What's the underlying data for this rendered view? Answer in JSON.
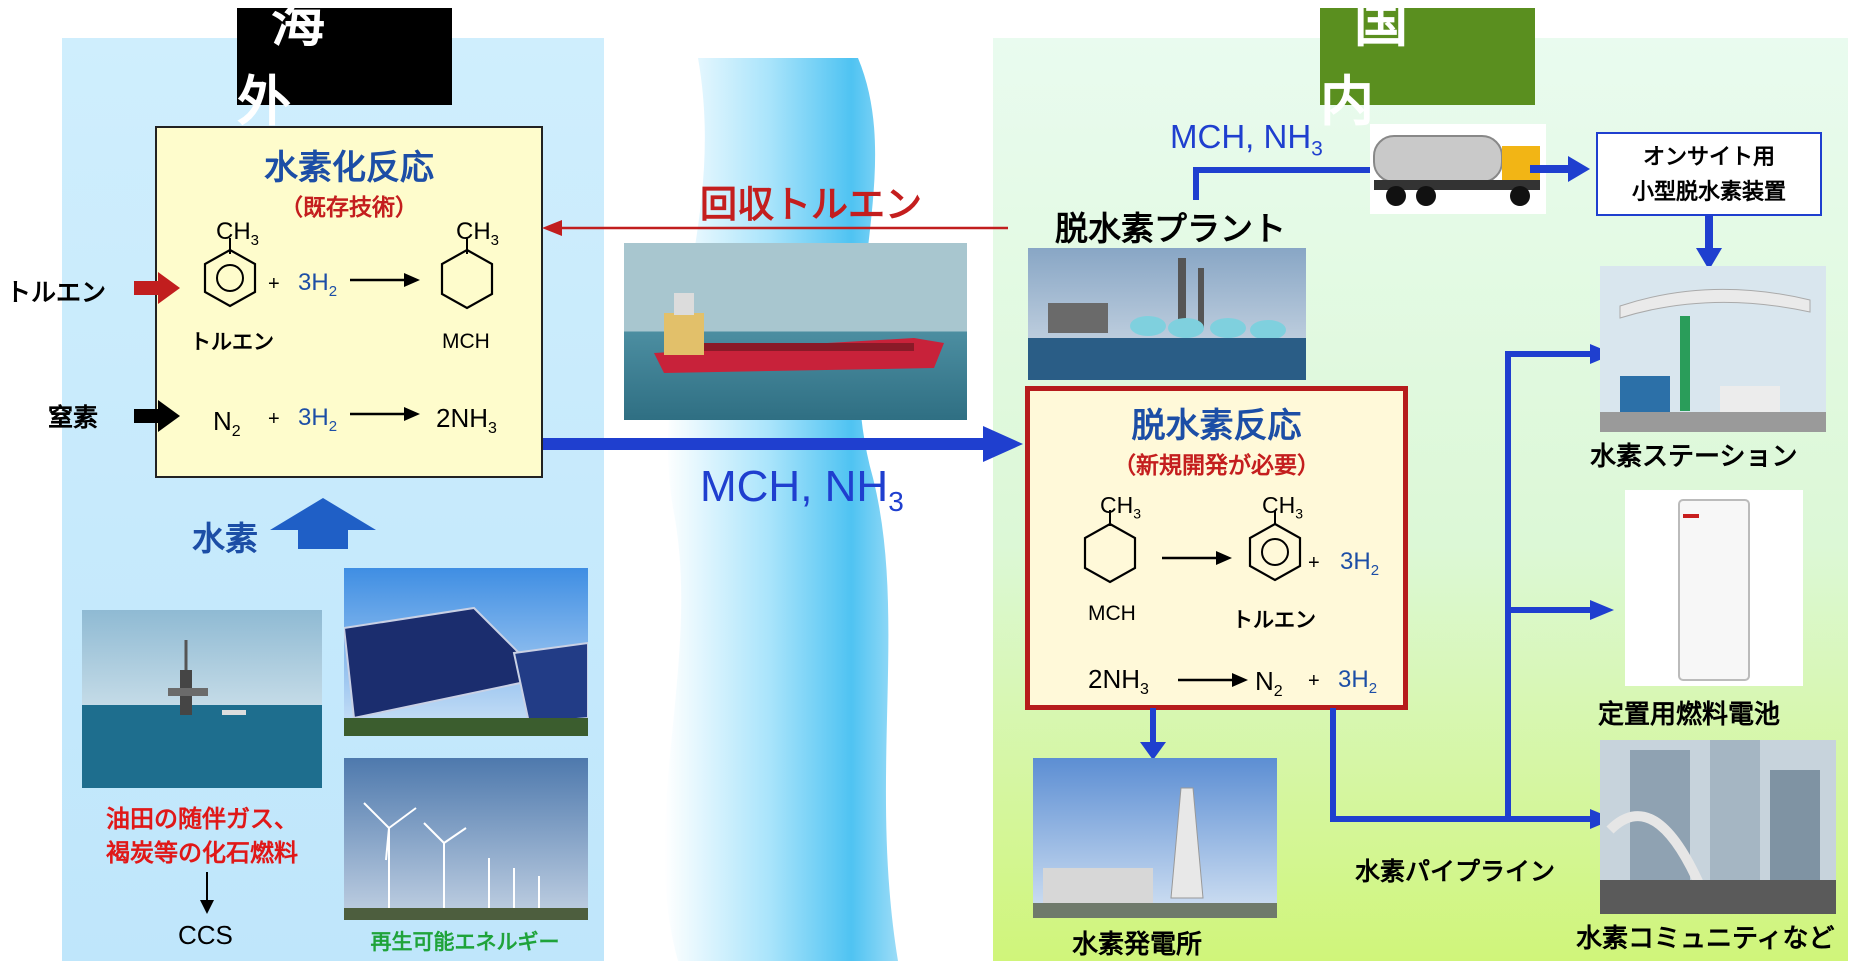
{
  "regions": {
    "overseas": "海　外",
    "domestic": "国　内"
  },
  "hydrogenation": {
    "title": "水素化反応",
    "subtitle": "（既存技術）",
    "toluene_label": "トルエン",
    "mch_label": "MCH",
    "plus": "+",
    "three_h2": "3H",
    "h2_sub": "2",
    "methyl": "CH",
    "methyl_sub": "3",
    "n2": "N",
    "n2_sub": "2",
    "two_nh3": "2NH",
    "nh3_sub": "3"
  },
  "inputs": {
    "toluene": "トルエン",
    "nitrogen": "窒素",
    "hydrogen": "水素"
  },
  "sources": {
    "fossil_line1": "油田の随伴ガス、",
    "fossil_line2": "褐炭等の化石燃料",
    "ccs": "CCS",
    "renewable": "再生可能エネルギー"
  },
  "transport": {
    "recovered_toluene": "回収トルエン",
    "mch_nh3": "MCH, NH",
    "nh3_sub": "3",
    "mch_nh3_small": "MCH, NH",
    "nh3_small_sub": "3"
  },
  "dehydrogenation": {
    "title": "脱水素反応",
    "subtitle": "（新規開発が必要）",
    "mch_label": "MCH",
    "toluene_label": "トルエン",
    "plus": "+",
    "three_h2": "3H",
    "h2_sub": "2",
    "methyl": "CH",
    "methyl_sub": "3",
    "two_nh3": "2NH",
    "nh3_sub": "3",
    "n2": "N",
    "n2_sub": "2"
  },
  "domestic": {
    "plant": "脱水素プラント",
    "onsite_line1": "オンサイト用",
    "onsite_line2": "小型脱水素装置",
    "station": "水素ステーション",
    "fuel_cell": "定置用燃料電池",
    "community": "水素コミュニティなど",
    "pipeline": "水素パイプライン",
    "power_plant": "水素発電所"
  },
  "colors": {
    "blue_arrow": "#1f3fcf",
    "red_arrow": "#c11e1e",
    "title_blue": "#1c4ea6",
    "domestic_tag": "#5a8f1f"
  }
}
